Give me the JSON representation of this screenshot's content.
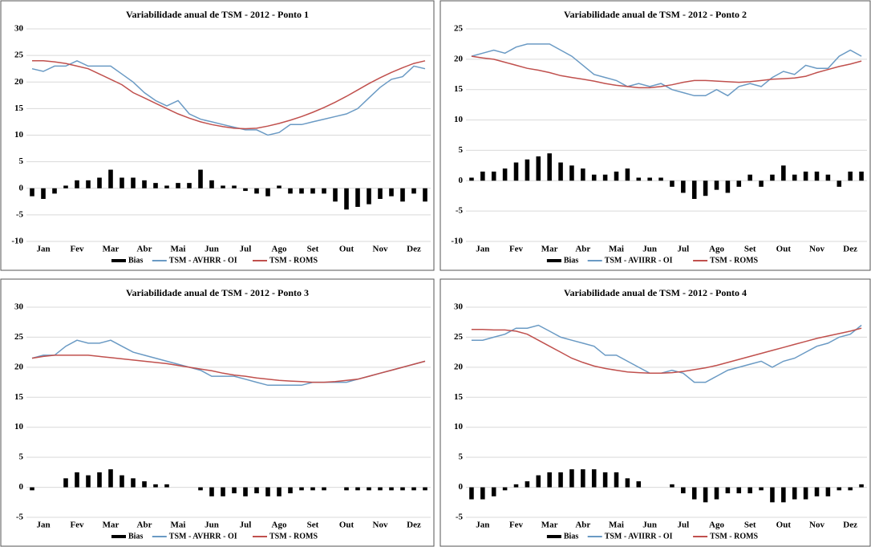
{
  "chart_data": [
    {
      "type": "combo",
      "title": "Variabilidade anual de TSM - 2012 - Ponto 1",
      "categories": [
        null,
        "Jan",
        null,
        null,
        "Fev",
        null,
        null,
        "Mar",
        null,
        null,
        "Abr",
        null,
        null,
        "Mai",
        null,
        null,
        "Jun",
        null,
        null,
        "Jul",
        null,
        null,
        "Ago",
        null,
        null,
        "Set",
        null,
        null,
        "Out",
        null,
        null,
        "Nov",
        null,
        null,
        "Dez",
        null
      ],
      "ylim": [
        -10,
        30
      ],
      "yticks": [
        -10,
        -5,
        0,
        5,
        10,
        15,
        20,
        25,
        30
      ],
      "grid": true,
      "series": [
        {
          "name": "Bias",
          "type": "bar",
          "color": "#000000",
          "values": [
            -1.5,
            -2,
            -1,
            0.5,
            1.5,
            1.5,
            2,
            3.5,
            2,
            2,
            1.5,
            1,
            0.5,
            1,
            1,
            3.5,
            1.5,
            0.5,
            0.5,
            -0.5,
            -1,
            -1.5,
            0.5,
            -1,
            -1,
            -1,
            -1,
            -2.5,
            -4,
            -3.5,
            -3,
            -2,
            -1.5,
            -2.5,
            -1,
            -2.5
          ]
        },
        {
          "name": "TSM - AVHRR - OI",
          "type": "line",
          "color": "#6a9ac4",
          "values": [
            22.5,
            22,
            23,
            23,
            24,
            23,
            23,
            23,
            21.5,
            20,
            18,
            16.5,
            15.5,
            16.5,
            14,
            13,
            12.5,
            12,
            11.5,
            11,
            11,
            10,
            10.5,
            12,
            12,
            12.5,
            13,
            13.5,
            14,
            15,
            17,
            19,
            20.5,
            21,
            23,
            22.5
          ]
        },
        {
          "name": "TSM - ROMS",
          "type": "line",
          "color": "#c0504d",
          "values": [
            24,
            24,
            23.8,
            23.5,
            23,
            22.5,
            21.5,
            20.5,
            19.5,
            18,
            17,
            16,
            15,
            14,
            13.2,
            12.5,
            12,
            11.6,
            11.3,
            11.2,
            11.3,
            11.7,
            12.2,
            12.8,
            13.5,
            14.3,
            15.2,
            16.2,
            17.3,
            18.5,
            19.7,
            20.8,
            21.8,
            22.7,
            23.5,
            24
          ]
        }
      ]
    },
    {
      "type": "combo",
      "title": "Variabilidade anual de TSM - 2012 - Ponto 2",
      "categories": [
        null,
        "Jan",
        null,
        null,
        "Fev",
        null,
        null,
        "Mar",
        null,
        null,
        "Abr",
        null,
        null,
        "Mai",
        null,
        null,
        "Jun",
        null,
        null,
        "Jul",
        null,
        null,
        "Ago",
        null,
        null,
        "Set",
        null,
        null,
        "Out",
        null,
        null,
        "Nov",
        null,
        null,
        "Dez",
        null
      ],
      "ylim": [
        -10,
        25
      ],
      "yticks": [
        -10,
        -5,
        0,
        5,
        10,
        15,
        20,
        25
      ],
      "grid": true,
      "series": [
        {
          "name": "Bias",
          "type": "bar",
          "color": "#000000",
          "values": [
            0.5,
            1.5,
            1.5,
            2,
            3,
            3.5,
            4,
            4.5,
            3,
            2.5,
            2,
            1,
            1,
            1.5,
            2,
            0.5,
            0.5,
            0.5,
            -1,
            -2,
            -3,
            -2.5,
            -1.5,
            -2,
            -1,
            1,
            -1,
            1,
            2.5,
            1,
            1.5,
            1.5,
            1,
            -1,
            1.5,
            1.5
          ]
        },
        {
          "name": "TSM - AVIIRR - OI",
          "type": "line",
          "color": "#6a9ac4",
          "values": [
            20.5,
            21,
            21.5,
            21,
            22,
            22.5,
            22.5,
            22.5,
            21.5,
            20.5,
            19,
            17.5,
            17,
            16.5,
            15.5,
            16,
            15.5,
            16,
            15,
            14.5,
            14,
            14,
            15,
            14,
            15.5,
            16,
            15.5,
            17,
            18,
            17.5,
            19,
            18.5,
            18.5,
            20.5,
            21.5,
            20.5
          ]
        },
        {
          "name": "TSM - ROMS",
          "type": "line",
          "color": "#c0504d",
          "values": [
            20.5,
            20.2,
            20,
            19.5,
            19,
            18.5,
            18.2,
            17.8,
            17.3,
            17,
            16.7,
            16.4,
            16,
            15.7,
            15.5,
            15.3,
            15.3,
            15.5,
            15.8,
            16.2,
            16.5,
            16.5,
            16.4,
            16.3,
            16.2,
            16.3,
            16.5,
            16.7,
            16.8,
            16.9,
            17.2,
            17.8,
            18.3,
            18.8,
            19.2,
            19.7
          ]
        }
      ]
    },
    {
      "type": "combo",
      "title": "Variabilidade anual de TSM - 2012 - Ponto 3",
      "categories": [
        null,
        "Jan",
        null,
        null,
        "Fev",
        null,
        null,
        "Mar",
        null,
        null,
        "Abr",
        null,
        null,
        "Mai",
        null,
        null,
        "Jun",
        null,
        null,
        "Jul",
        null,
        null,
        "Ago",
        null,
        null,
        "Set",
        null,
        null,
        "Out",
        null,
        null,
        "Nov",
        null,
        null,
        "Dez",
        null
      ],
      "ylim": [
        -5,
        30
      ],
      "yticks": [
        -5,
        0,
        5,
        10,
        15,
        20,
        25,
        30
      ],
      "grid": true,
      "series": [
        {
          "name": "Bias",
          "type": "bar",
          "color": "#000000",
          "values": [
            -0.5,
            0,
            0,
            1.5,
            2.5,
            2,
            2.5,
            3,
            2,
            1.5,
            1,
            0.5,
            0.5,
            0,
            0,
            -0.5,
            -1.5,
            -1.5,
            -1,
            -1.5,
            -1,
            -1.5,
            -1.5,
            -1,
            -0.5,
            -0.5,
            -0.5,
            0,
            -0.5,
            -0.5,
            -0.5,
            -0.5,
            -0.5,
            -0.5,
            -0.5,
            -0.5
          ]
        },
        {
          "name": "TSM - AVHRR - OI",
          "type": "line",
          "color": "#6a9ac4",
          "values": [
            21.5,
            22,
            22,
            23.5,
            24.5,
            24,
            24,
            24.5,
            23.5,
            22.5,
            22,
            21.5,
            21,
            20.5,
            20,
            19.5,
            18.5,
            18.5,
            18.5,
            18,
            17.5,
            17,
            17,
            17,
            17,
            17.5,
            17.5,
            17.5,
            17.5,
            18,
            18.5,
            19,
            19.5,
            20,
            20.5,
            21
          ]
        },
        {
          "name": "TSM - ROMS",
          "type": "line",
          "color": "#c0504d",
          "values": [
            21.5,
            21.8,
            22,
            22,
            22,
            22,
            21.8,
            21.6,
            21.4,
            21.2,
            21,
            20.8,
            20.6,
            20.3,
            20,
            19.7,
            19.4,
            19,
            18.7,
            18.5,
            18.2,
            18,
            17.8,
            17.7,
            17.6,
            17.5,
            17.5,
            17.6,
            17.8,
            18,
            18.5,
            19,
            19.5,
            20,
            20.5,
            21
          ]
        }
      ]
    },
    {
      "type": "combo",
      "title": "Variabilidade anual de TSM - 2012 - Ponto 4",
      "categories": [
        null,
        "Jan",
        null,
        null,
        "Fev",
        null,
        null,
        "Mar",
        null,
        null,
        "Abr",
        null,
        null,
        "Mai",
        null,
        null,
        "Jun",
        null,
        null,
        "Jul",
        null,
        null,
        "Ago",
        null,
        null,
        "Set",
        null,
        null,
        "Out",
        null,
        null,
        "Nov",
        null,
        null,
        "Dez",
        null
      ],
      "ylim": [
        -5,
        30
      ],
      "yticks": [
        -5,
        0,
        5,
        10,
        15,
        20,
        25,
        30
      ],
      "grid": true,
      "series": [
        {
          "name": "Bias",
          "type": "bar",
          "color": "#000000",
          "values": [
            -2,
            -2,
            -1.5,
            -0.5,
            0.5,
            1,
            2,
            2.5,
            2.5,
            3,
            3,
            3,
            2.5,
            2.5,
            1.5,
            1,
            0,
            0,
            0.5,
            -1,
            -2,
            -2.5,
            -2,
            -1,
            -1,
            -1,
            -0.5,
            -2.5,
            -2.5,
            -2,
            -2,
            -1.5,
            -1.5,
            -0.5,
            -0.5,
            0.5
          ]
        },
        {
          "name": "TSM - AVIIRR - OI",
          "type": "line",
          "color": "#6a9ac4",
          "values": [
            24.5,
            24.5,
            25,
            25.5,
            26.5,
            26.5,
            27,
            26,
            25,
            24.5,
            24,
            23.5,
            22,
            22,
            21,
            20,
            19,
            19,
            19.5,
            19,
            17.5,
            17.5,
            18.5,
            19.5,
            20,
            20.5,
            21,
            20,
            21,
            21.5,
            22.5,
            23.5,
            24,
            25,
            25.5,
            27
          ]
        },
        {
          "name": "TSM - ROMS",
          "type": "line",
          "color": "#c0504d",
          "values": [
            26.3,
            26.3,
            26.2,
            26.2,
            26,
            25.5,
            24.5,
            23.5,
            22.5,
            21.5,
            20.8,
            20.2,
            19.8,
            19.5,
            19.2,
            19.1,
            19,
            19,
            19.1,
            19.3,
            19.6,
            19.9,
            20.3,
            20.8,
            21.3,
            21.8,
            22.3,
            22.8,
            23.3,
            23.8,
            24.3,
            24.8,
            25.2,
            25.6,
            26,
            26.5
          ]
        }
      ]
    }
  ]
}
